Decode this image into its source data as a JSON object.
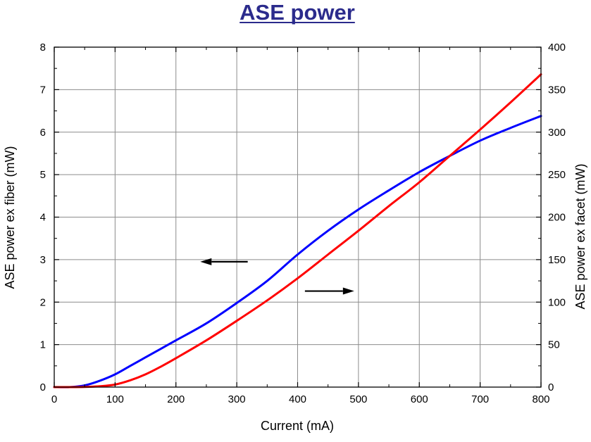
{
  "chart_data": {
    "type": "line",
    "title": "ASE power",
    "title_color": "#2b2b8c",
    "xlabel": "Current (mA)",
    "ylabel_left": "ASE power ex fiber (mW)",
    "ylabel_right": "ASE power ex facet (mW)",
    "xlim": [
      0,
      800
    ],
    "ylim_left": [
      0,
      8
    ],
    "ylim_right": [
      0,
      400
    ],
    "xticks": [
      "0",
      "100",
      "200",
      "300",
      "400",
      "500",
      "600",
      "700",
      "800"
    ],
    "yticks_left": [
      "0",
      "1",
      "2",
      "3",
      "4",
      "5",
      "6",
      "7",
      "8"
    ],
    "yticks_right": [
      "0",
      "50",
      "100",
      "150",
      "200",
      "250",
      "300",
      "350",
      "400"
    ],
    "grid": true,
    "series": [
      {
        "axis": "left",
        "color": "#0000ff",
        "x": [
          0,
          25,
          50,
          75,
          100,
          125,
          150,
          175,
          200,
          250,
          300,
          350,
          400,
          450,
          500,
          550,
          600,
          650,
          700,
          750,
          800
        ],
        "y": [
          0,
          0.0,
          0.04,
          0.15,
          0.3,
          0.5,
          0.7,
          0.9,
          1.1,
          1.5,
          1.98,
          2.5,
          3.12,
          3.68,
          4.18,
          4.63,
          5.06,
          5.44,
          5.8,
          6.1,
          6.38
        ]
      },
      {
        "axis": "right",
        "color": "#ff0000",
        "x": [
          0,
          25,
          50,
          75,
          100,
          125,
          150,
          175,
          200,
          250,
          300,
          350,
          400,
          450,
          500,
          550,
          600,
          650,
          700,
          750,
          800
        ],
        "y": [
          0,
          0,
          0.2,
          1.0,
          3.0,
          8.0,
          15.0,
          24.0,
          34.0,
          55.0,
          78.0,
          102.0,
          128.0,
          156.0,
          184.0,
          213.0,
          241.0,
          272.0,
          303.0,
          335.0,
          368.0
        ]
      }
    ],
    "annotations": [
      {
        "type": "arrow",
        "direction": "left",
        "points_to_axis": "left",
        "x_from": 318,
        "x_to": 240,
        "y": 2.95
      },
      {
        "type": "arrow",
        "direction": "right",
        "points_to_axis": "right",
        "x_from": 412,
        "x_to": 493,
        "y_right": 113
      }
    ]
  }
}
